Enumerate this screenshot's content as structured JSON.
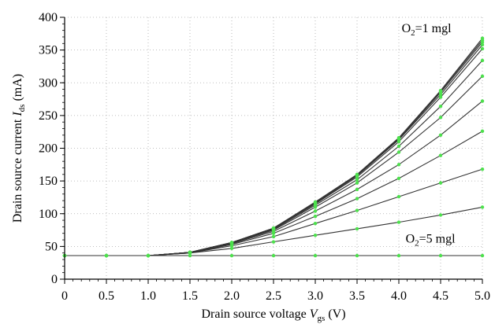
{
  "chart_data": {
    "type": "line",
    "xlabel": "Drain source voltage V_gs (V)",
    "xlabel_parts": {
      "pre": "Drain source voltage ",
      "var": "V",
      "sub": "gs",
      "post": " (V)"
    },
    "ylabel": "Drain source current I_ds (mA)",
    "ylabel_parts": {
      "pre": "Drain source current ",
      "var": "I",
      "sub": "ds",
      "post": " (mA)"
    },
    "xlim": [
      0,
      5.0
    ],
    "ylim": [
      0,
      400
    ],
    "xticks": [
      "0",
      "0.5",
      "1.0",
      "1.5",
      "2.0",
      "2.5",
      "3.0",
      "3.5",
      "4.0",
      "4.5",
      "5.0"
    ],
    "yticks": [
      "0",
      "50",
      "100",
      "150",
      "200",
      "250",
      "300",
      "350",
      "400"
    ],
    "grid": "dotted",
    "annotations": [
      {
        "pre": "O",
        "sub": "2",
        "post": "=1 mgl",
        "x": 4.6,
        "y": 383
      },
      {
        "pre": "O",
        "sub": "2",
        "post": "=5 mgl",
        "x": 4.1,
        "y": 62
      }
    ],
    "colors": {
      "line": "#333333",
      "marker": "#4de04d",
      "grid": "#aaaaaa",
      "axis": "#000000"
    },
    "x": [
      0.0,
      0.5,
      1.0,
      1.5,
      2.0,
      2.5,
      3.0,
      3.5,
      4.0,
      4.5,
      5.0
    ],
    "series": [
      {
        "values": [
          36,
          36,
          36,
          41,
          56,
          78,
          118,
          160,
          216,
          288,
          368
        ]
      },
      {
        "values": [
          36,
          36,
          36,
          41,
          56,
          78,
          117,
          159,
          215,
          287,
          365
        ]
      },
      {
        "values": [
          36,
          36,
          36,
          41,
          56,
          78,
          117,
          159,
          214,
          285,
          362
        ]
      },
      {
        "values": [
          36,
          36,
          36,
          41,
          56,
          77,
          116,
          158,
          213,
          282,
          358
        ]
      },
      {
        "values": [
          36,
          36,
          36,
          41,
          56,
          77,
          115,
          156,
          210,
          278,
          352
        ]
      },
      {
        "values": [
          36,
          36,
          36,
          41,
          55,
          76,
          113,
          152,
          203,
          264,
          334
        ]
      },
      {
        "values": [
          36,
          36,
          36,
          41,
          55,
          75,
          110,
          147,
          194,
          247,
          310
        ]
      },
      {
        "values": [
          36,
          36,
          36,
          41,
          54,
          73,
          104,
          137,
          175,
          220,
          272
        ]
      },
      {
        "values": [
          36,
          36,
          36,
          40,
          53,
          70,
          96,
          123,
          154,
          189,
          226
        ]
      },
      {
        "values": [
          36,
          36,
          36,
          40,
          51,
          65,
          85,
          105,
          126,
          147,
          168
        ]
      },
      {
        "values": [
          36,
          36,
          36,
          40,
          47,
          57,
          67,
          77,
          87,
          98,
          110
        ]
      },
      {
        "values": [
          36,
          36,
          36,
          36,
          36,
          36,
          36,
          36,
          36,
          36,
          36
        ]
      }
    ]
  }
}
